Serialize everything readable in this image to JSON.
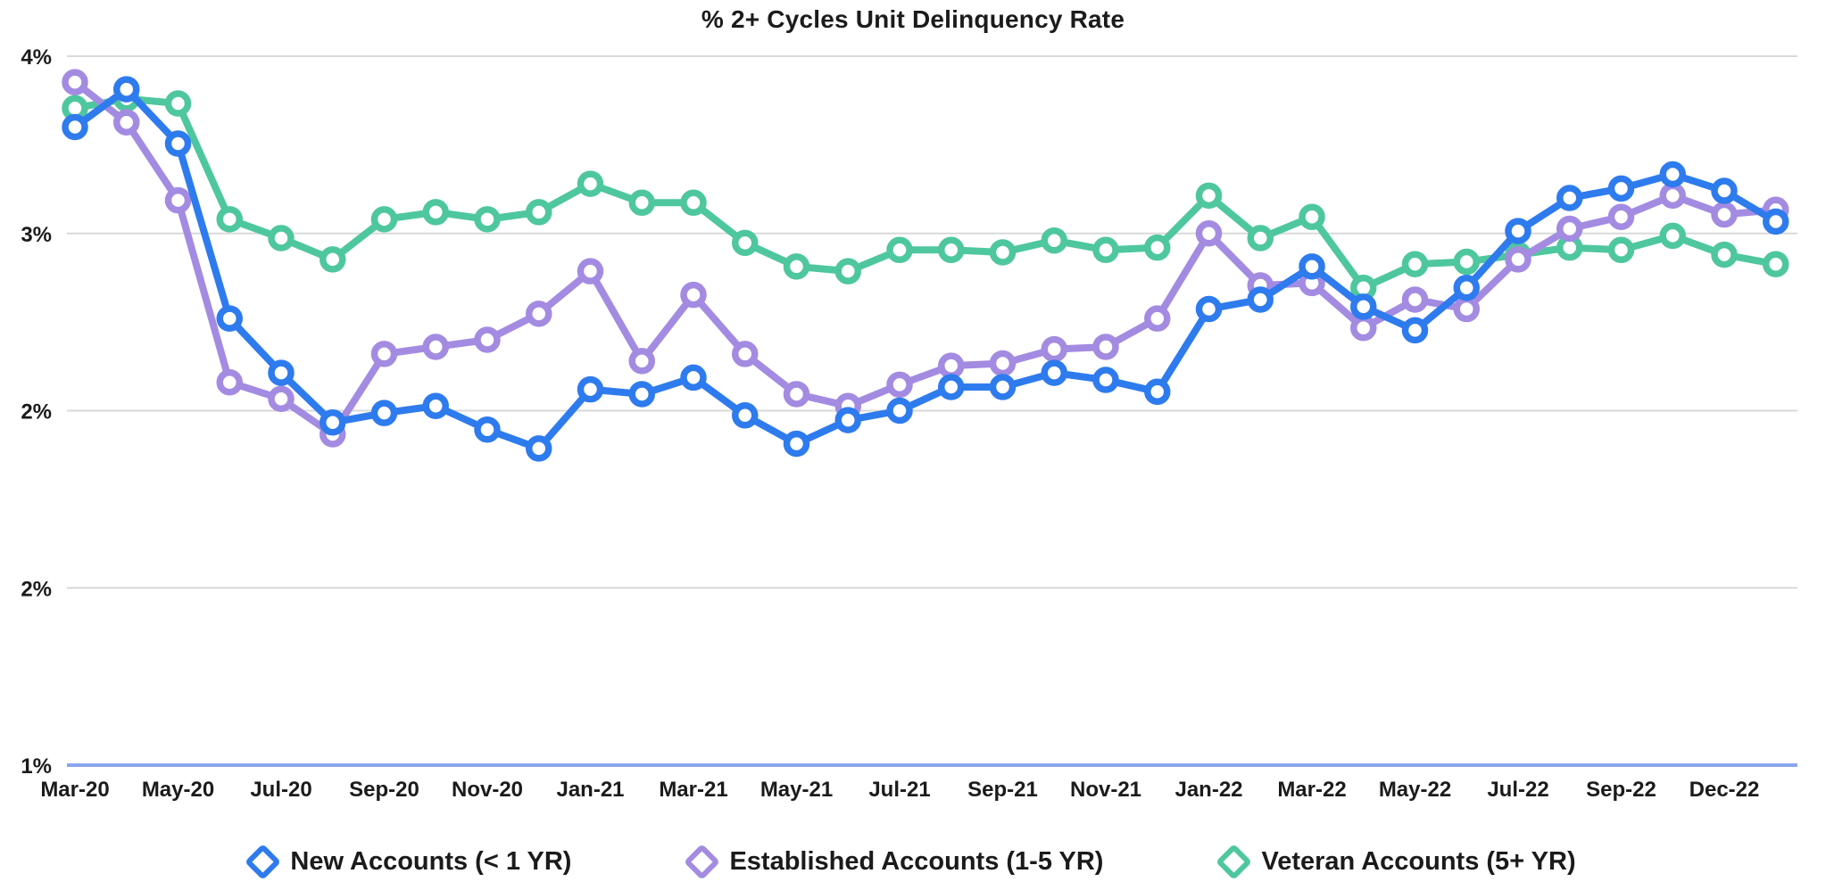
{
  "title": "% 2+ Cycles Unit Delinquency Rate",
  "colors": {
    "background": "#ffffff",
    "grid_line": "#d9d9d9",
    "baseline_axis": "#8ba6ef",
    "label_text": "#1b1b1b",
    "new_accounts_blue": "#2e7bee",
    "established_accounts_purple": "#a38be2",
    "veteran_accounts_green": "#4ec79e"
  },
  "chart_data": {
    "type": "line",
    "title": "% 2+ Cycles Unit Delinquency Rate",
    "xlabel": "",
    "ylabel": "",
    "grid": true,
    "legend_position": "bottom",
    "marker_style": "open-ring",
    "x": [
      "Mar-20",
      "Apr-20",
      "May-20",
      "Jun-20",
      "Jul-20",
      "Aug-20",
      "Sep-20",
      "Oct-20",
      "Nov-20",
      "Dec-20",
      "Jan-21",
      "Feb-21",
      "Mar-21",
      "Apr-21",
      "May-21",
      "Jun-21",
      "Jul-21",
      "Aug-21",
      "Sep-21",
      "Oct-21",
      "Nov-21",
      "Dec-21",
      "Jan-22",
      "Feb-22",
      "Mar-22",
      "Apr-22",
      "May-22",
      "Jun-22",
      "Jul-22",
      "Aug-22",
      "Sep-22",
      "Oct-22",
      "Nov-22",
      "Dec-22"
    ],
    "x_tick_labels": [
      "Mar-20",
      "May-20",
      "Jul-20",
      "Sep-20",
      "Nov-20",
      "Jan-21",
      "Mar-21",
      "May-21",
      "Jul-21",
      "Sep-21",
      "Nov-21",
      "Jan-22",
      "Mar-22",
      "May-22",
      "Jul-22",
      "Sep-22",
      "Dec-22"
    ],
    "x_tick_every": 2,
    "y_axis": {
      "min": 1,
      "max": 4,
      "tick_values": [
        4,
        3.25,
        2.5,
        1.75,
        1
      ],
      "tick_labels": [
        "4%",
        "3%",
        "2%",
        "2%",
        "1%"
      ]
    },
    "series": [
      {
        "name": "New Accounts (< 1 YR)",
        "color": "#2e7bee",
        "values": [
          3.7,
          3.86,
          3.63,
          2.89,
          2.66,
          2.45,
          2.49,
          2.52,
          2.42,
          2.34,
          2.59,
          2.57,
          2.64,
          2.48,
          2.36,
          2.46,
          2.5,
          2.6,
          2.6,
          2.66,
          2.63,
          2.58,
          2.93,
          2.97,
          3.11,
          2.94,
          2.84,
          3.02,
          3.26,
          3.4,
          3.44,
          3.5,
          3.43,
          3.3
        ]
      },
      {
        "name": "Established Accounts (1-5 YR)",
        "color": "#a38be2",
        "values": [
          3.89,
          3.72,
          3.39,
          2.62,
          2.55,
          2.4,
          2.74,
          2.77,
          2.8,
          2.91,
          3.09,
          2.71,
          2.99,
          2.74,
          2.57,
          2.52,
          2.61,
          2.69,
          2.7,
          2.76,
          2.77,
          2.89,
          3.25,
          3.03,
          3.04,
          2.85,
          2.97,
          2.93,
          3.14,
          3.27,
          3.32,
          3.41,
          3.33,
          3.35
        ]
      },
      {
        "name": "Veteran Accounts (5+ YR)",
        "color": "#4ec79e",
        "values": [
          3.78,
          3.82,
          3.8,
          3.31,
          3.23,
          3.14,
          3.31,
          3.34,
          3.31,
          3.34,
          3.46,
          3.38,
          3.38,
          3.21,
          3.11,
          3.09,
          3.18,
          3.18,
          3.17,
          3.22,
          3.18,
          3.19,
          3.41,
          3.23,
          3.32,
          3.02,
          3.12,
          3.13,
          3.16,
          3.19,
          3.18,
          3.24,
          3.16,
          3.12
        ]
      }
    ]
  }
}
